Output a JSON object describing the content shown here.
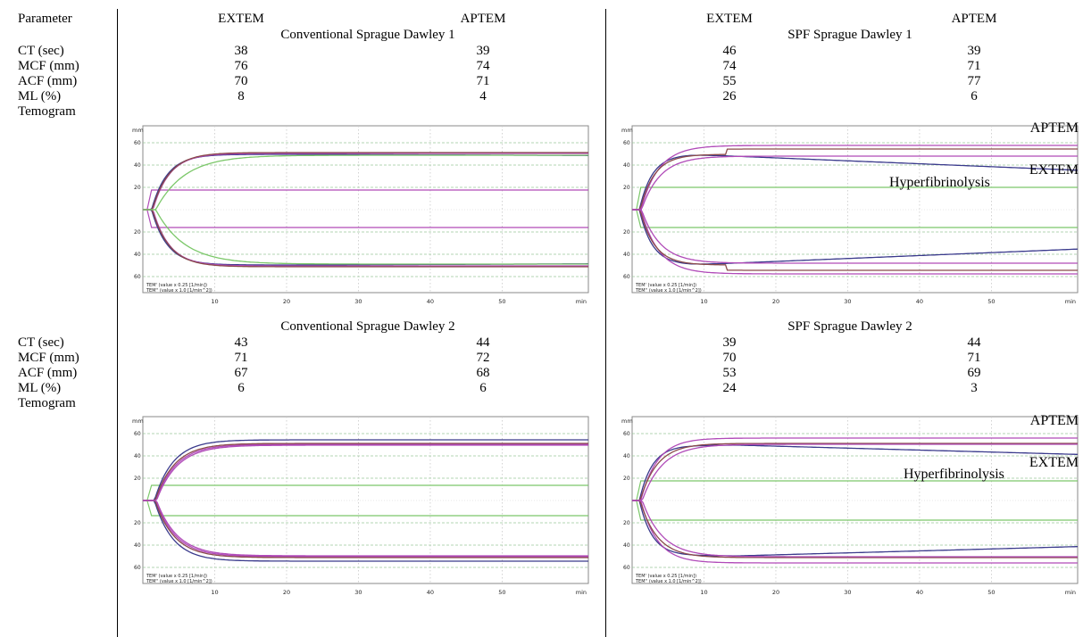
{
  "header": {
    "parameter": "Parameter",
    "left_extem": "EXTEM",
    "left_aptem": "APTEM",
    "right_extem": "EXTEM",
    "right_aptem": "APTEM"
  },
  "row_labels": {
    "ct": "CT (sec)",
    "mcf": "MCF (mm)",
    "acf": "ACF (mm)",
    "ml": "ML (%)",
    "temogram": "Temogram"
  },
  "groups": [
    {
      "title": "Conventional Sprague Dawley 1",
      "ct": [
        "38",
        "39"
      ],
      "mcf": [
        "76",
        "74"
      ],
      "acf": [
        "70",
        "71"
      ],
      "ml": [
        "8",
        "4"
      ]
    },
    {
      "title": "SPF Sprague Dawley 1",
      "ct": [
        "46",
        "39"
      ],
      "mcf": [
        "74",
        "71"
      ],
      "acf": [
        "55",
        "77"
      ],
      "ml": [
        "26",
        "6"
      ]
    },
    {
      "title": "Conventional Sprague Dawley 2",
      "ct": [
        "43",
        "44"
      ],
      "mcf": [
        "71",
        "72"
      ],
      "acf": [
        "67",
        "68"
      ],
      "ml": [
        "6",
        "6"
      ]
    },
    {
      "title": "SPF Sprague Dawley 2",
      "ct": [
        "39",
        "44"
      ],
      "mcf": [
        "70",
        "71"
      ],
      "acf": [
        "53",
        "69"
      ],
      "ml": [
        "24",
        "3"
      ]
    }
  ],
  "temogram": {
    "unit_label": "mm",
    "x_unit": "min",
    "x_ticks": [
      "10",
      "20",
      "30",
      "40",
      "50"
    ],
    "y_ticks_upper": [
      "60",
      "40",
      "20"
    ],
    "y_ticks_lower": [
      "20",
      "40",
      "60"
    ],
    "legend_line1": "TEM' (value x 0.25  [1/min])",
    "legend_line2": "TEM'' (value x 1.0  [1/min^2])",
    "colors": {
      "blue": "#3a3a8c",
      "magenta": "#b04ab8",
      "brown": "#8a4a4a",
      "green": "#7cc86a",
      "grid": "#9ac89a"
    }
  },
  "annotations": {
    "spf1_aptem": "APTEM",
    "spf1_extem": "EXTEM",
    "spf1_hyper": "Hyperfibrinolysis",
    "spf2_aptem": "APTEM",
    "spf2_extem": "EXTEM",
    "spf2_hyper": "Hyperfibrinolysis"
  }
}
